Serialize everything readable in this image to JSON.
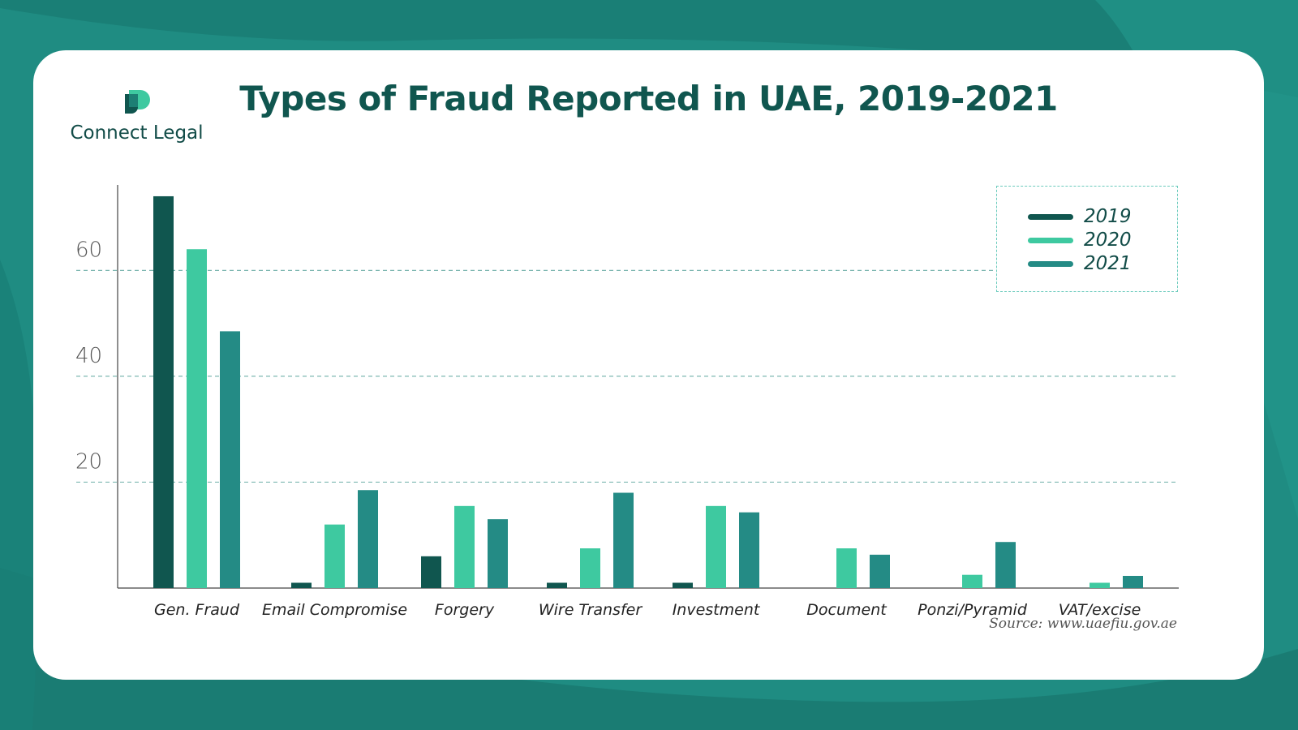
{
  "brand": {
    "name": "Connect Legal",
    "logo_icon": "connect-legal-logo-icon"
  },
  "colors": {
    "background": "#1d8a80",
    "title": "#10564f",
    "series_2019": "#10564f",
    "series_2020": "#3ec9a0",
    "series_2021": "#248b85",
    "grid": "#7fb8b2",
    "legend_border": "#6ccbbd"
  },
  "source": "Source: www.uaefiu.gov.ae",
  "chart_data": {
    "type": "bar",
    "title": "Types of Fraud Reported in UAE, 2019-2021",
    "xlabel": "",
    "ylabel": "",
    "ylim": [
      0,
      74.3
    ],
    "yticks": [
      20,
      40,
      60
    ],
    "grid": true,
    "legend_position": "top-right",
    "categories": [
      "Gen. Fraud",
      "Email Compromise",
      "Forgery",
      "Wire Transfer",
      "Investment",
      "Document",
      "Ponzi/Pyramid",
      "VAT/excise"
    ],
    "series": [
      {
        "name": "2019",
        "values": [
          74,
          1,
          6,
          1,
          1,
          0,
          0,
          0
        ]
      },
      {
        "name": "2020",
        "values": [
          64,
          12,
          15.5,
          7.5,
          15.5,
          7.5,
          2.5,
          1
        ]
      },
      {
        "name": "2021",
        "values": [
          48.5,
          18.5,
          13,
          18,
          14.3,
          6.3,
          8.7,
          2.3
        ]
      }
    ]
  }
}
